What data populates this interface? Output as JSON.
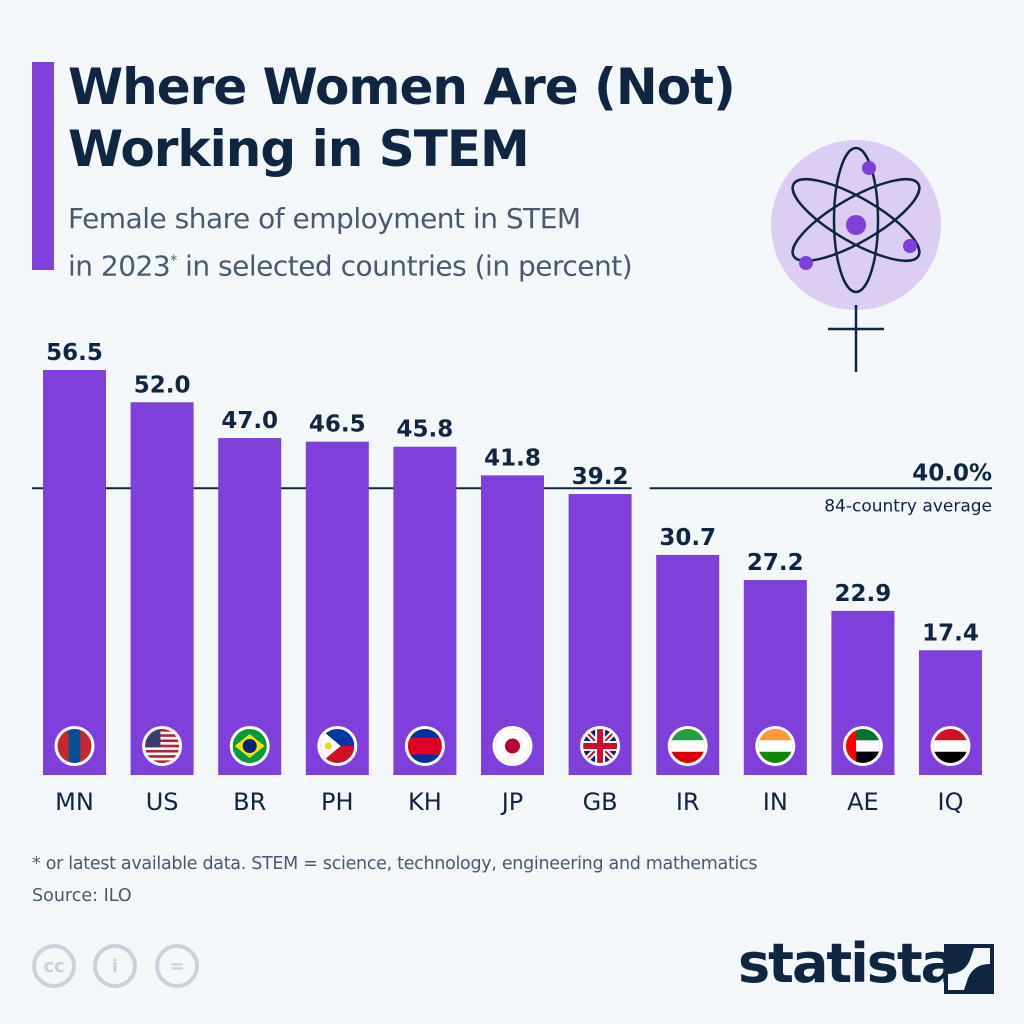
{
  "header": {
    "title_line1": "Where Women Are (Not)",
    "title_line2": "Working in STEM",
    "subtitle_line1": "Female share of employment in STEM",
    "subtitle_line2_a": "in 2023",
    "subtitle_line2_sup": "*",
    "subtitle_line2_b": " in selected countries (in percent)"
  },
  "chart_data": {
    "type": "bar",
    "categories": [
      "MN",
      "US",
      "BR",
      "PH",
      "KH",
      "JP",
      "GB",
      "IR",
      "IN",
      "AE",
      "IQ"
    ],
    "values": [
      56.5,
      52.0,
      47.0,
      46.5,
      45.8,
      41.8,
      39.2,
      30.7,
      27.2,
      22.9,
      17.4
    ],
    "value_labels": [
      "56.5",
      "52.0",
      "47.0",
      "46.5",
      "45.8",
      "41.8",
      "39.2",
      "30.7",
      "27.2",
      "22.9",
      "17.4"
    ],
    "ylim": [
      0,
      60
    ],
    "grid": false,
    "reference_line": {
      "value": 40.0,
      "label": "40.0%",
      "sublabel": "84-country average"
    },
    "bar_color": "#7e3fdb",
    "flag_icons": [
      "mongolia-flag",
      "usa-flag",
      "brazil-flag",
      "philippines-flag",
      "cambodia-flag",
      "japan-flag",
      "uk-flag",
      "iran-flag",
      "india-flag",
      "uae-flag",
      "iraq-flag"
    ]
  },
  "footer": {
    "note": "* or latest available data. STEM = science, technology, engineering and mathematics",
    "source": "Source: ILO",
    "license_icons": [
      "cc",
      "i",
      "="
    ],
    "logo": "statista"
  },
  "colors": {
    "accent": "#7e3fdb",
    "title": "#0f2540",
    "text": "#4a5a6e",
    "background": "#f4f7fa",
    "icon_circle": "#dccdf2"
  }
}
